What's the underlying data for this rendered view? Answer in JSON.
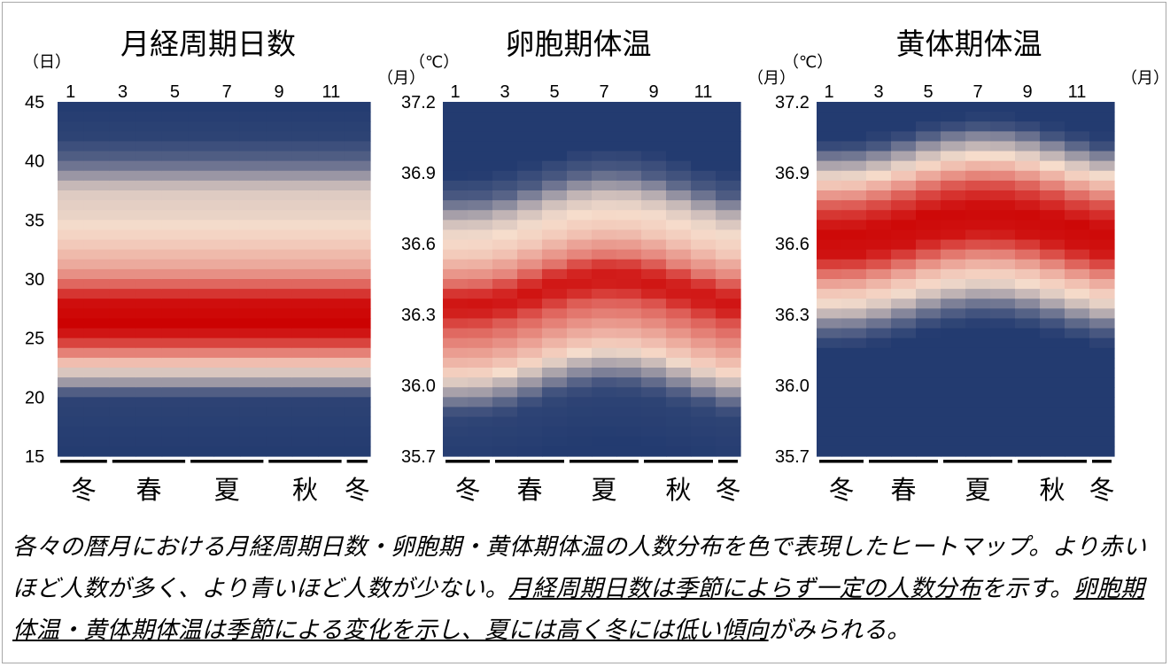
{
  "chart_data": [
    {
      "type": "heatmap",
      "title": "月経周期日数",
      "unit_label": "（日）",
      "x_unit_label": "（月）",
      "x_tick_labels": [
        "1",
        "3",
        "5",
        "7",
        "9",
        "11"
      ],
      "x_months": [
        1,
        2,
        3,
        4,
        5,
        6,
        7,
        8,
        9,
        10,
        11,
        12
      ],
      "y_tick_labels": [
        "45",
        "40",
        "35",
        "30",
        "25",
        "20",
        "15"
      ],
      "ylim": [
        15,
        45
      ],
      "seasons": [
        "冬",
        "春",
        "夏",
        "秋",
        "冬"
      ],
      "profile": [
        [
          45,
          0.0
        ],
        [
          42,
          0.02
        ],
        [
          40,
          0.1
        ],
        [
          39,
          0.2
        ],
        [
          38,
          0.3
        ],
        [
          37.5,
          0.35
        ],
        [
          35,
          0.38
        ],
        [
          33,
          0.45
        ],
        [
          31,
          0.55
        ],
        [
          30,
          0.65
        ],
        [
          29,
          0.82
        ],
        [
          28,
          0.96
        ],
        [
          26,
          1.0
        ],
        [
          25,
          0.9
        ],
        [
          24,
          0.7
        ],
        [
          23,
          0.5
        ],
        [
          22,
          0.33
        ],
        [
          21,
          0.2
        ],
        [
          20.5,
          0.1
        ],
        [
          20,
          0.02
        ],
        [
          15,
          0.0
        ]
      ],
      "season_shift": 0,
      "color_scale": {
        "low": "#233b70",
        "mid": "#f6ddcc",
        "high": "#cc0000"
      }
    },
    {
      "type": "heatmap",
      "title": "卵胞期体温",
      "unit_label": "（℃）",
      "x_unit_label": "（月）",
      "x_tick_labels": [
        "1",
        "3",
        "5",
        "7",
        "9",
        "11"
      ],
      "x_months": [
        1,
        2,
        3,
        4,
        5,
        6,
        7,
        8,
        9,
        10,
        11,
        12
      ],
      "y_tick_labels": [
        "37.2",
        "36.9",
        "36.6",
        "36.3",
        "36.0",
        "35.7"
      ],
      "ylim": [
        35.7,
        37.2
      ],
      "seasons": [
        "冬",
        "春",
        "夏",
        "秋",
        "冬"
      ],
      "profile": [
        [
          37.2,
          0.0
        ],
        [
          36.95,
          0.0
        ],
        [
          36.85,
          0.08
        ],
        [
          36.8,
          0.2
        ],
        [
          36.75,
          0.32
        ],
        [
          36.7,
          0.38
        ],
        [
          36.6,
          0.46
        ],
        [
          36.5,
          0.65
        ],
        [
          36.45,
          0.85
        ],
        [
          36.4,
          0.95
        ],
        [
          36.35,
          0.9
        ],
        [
          36.3,
          0.75
        ],
        [
          36.2,
          0.58
        ],
        [
          36.1,
          0.42
        ],
        [
          36.05,
          0.3
        ],
        [
          36.0,
          0.18
        ],
        [
          35.95,
          0.06
        ],
        [
          35.9,
          0.02
        ],
        [
          35.7,
          0.0
        ]
      ],
      "season_shift": 0.06,
      "color_scale": {
        "low": "#233b70",
        "mid": "#f6ddcc",
        "high": "#cc0000"
      }
    },
    {
      "type": "heatmap",
      "title": "黄体期体温",
      "unit_label": "（℃）",
      "x_unit_label": "（月）",
      "x_tick_labels": [
        "1",
        "3",
        "5",
        "7",
        "9",
        "11"
      ],
      "x_months": [
        1,
        2,
        3,
        4,
        5,
        6,
        7,
        8,
        9,
        10,
        11,
        12
      ],
      "y_tick_labels": [
        "37.2",
        "36.9",
        "36.6",
        "36.3",
        "36.0",
        "35.7"
      ],
      "ylim": [
        35.7,
        37.2
      ],
      "seasons": [
        "冬",
        "春",
        "夏",
        "秋",
        "冬"
      ],
      "profile": [
        [
          37.2,
          0.0
        ],
        [
          37.1,
          0.0
        ],
        [
          37.05,
          0.05
        ],
        [
          37.0,
          0.2
        ],
        [
          36.95,
          0.34
        ],
        [
          36.9,
          0.45
        ],
        [
          36.85,
          0.6
        ],
        [
          36.8,
          0.78
        ],
        [
          36.75,
          0.9
        ],
        [
          36.7,
          0.98
        ],
        [
          36.6,
          0.95
        ],
        [
          36.55,
          0.8
        ],
        [
          36.5,
          0.62
        ],
        [
          36.45,
          0.48
        ],
        [
          36.4,
          0.4
        ],
        [
          36.35,
          0.3
        ],
        [
          36.3,
          0.15
        ],
        [
          36.25,
          0.05
        ],
        [
          36.2,
          0.0
        ],
        [
          35.7,
          0.0
        ]
      ],
      "season_shift": 0.05,
      "color_scale": {
        "low": "#233b70",
        "mid": "#f6ddcc",
        "high": "#cc0000"
      }
    }
  ],
  "caption": {
    "part1": "各々の暦月における月経周期日数・卵胞期・黄体期体温の人数分布を色で表現したヒートマップ。より赤いほど人数が多く、より青いほど人数が少ない。",
    "part2": "月経周期日数は季節によらず一定の人数分布",
    "part3": "を示す。",
    "part4": "卵胞期体温・黄体期体温は季節による変化を示し、夏には高く冬には低い傾向",
    "part5": "がみられる。"
  }
}
